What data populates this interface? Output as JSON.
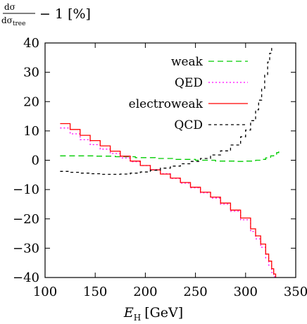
{
  "chart_data": {
    "type": "line",
    "ylabel_fraction": {
      "numerator": "dσ",
      "denominator_main": "dσ",
      "denominator_sub": "tree"
    },
    "ylabel_tail": "− 1 [%]",
    "xlabel_main": "E",
    "xlabel_sub": "H",
    "xlabel_unit": "[GeV]",
    "xlim": [
      100,
      350
    ],
    "ylim": [
      -40,
      40
    ],
    "xticks": [
      "100",
      "150",
      "200",
      "250",
      "300",
      "350"
    ],
    "yticks": [
      "40",
      "30",
      "20",
      "10",
      "0",
      "−10",
      "−20",
      "−30",
      "−40"
    ],
    "legend_position": "top-right",
    "series": [
      {
        "name": "weak",
        "color": "#00cc00",
        "dash": "8,5",
        "x": [
          115,
          130,
          150,
          170,
          190,
          210,
          230,
          250,
          270,
          290,
          300,
          310,
          315,
          320,
          325,
          328,
          331,
          333
        ],
        "y": [
          1.5,
          1.5,
          1.4,
          1.2,
          0.9,
          0.6,
          0.3,
          0.0,
          -0.3,
          -0.4,
          -0.3,
          0.0,
          0.3,
          0.8,
          1.5,
          2.1,
          2.6,
          3.0
        ]
      },
      {
        "name": "QED",
        "color": "#ff00ff",
        "dash": "2,3",
        "x": [
          115,
          125,
          135,
          145,
          155,
          165,
          175,
          185,
          195,
          205,
          215,
          225,
          235,
          245,
          255,
          265,
          275,
          285,
          295,
          305,
          310,
          315,
          320,
          323,
          326,
          328,
          329
        ],
        "y": [
          11,
          9,
          7,
          5.3,
          3.8,
          2.3,
          0.8,
          -0.5,
          -1.8,
          -3.2,
          -4.6,
          -6.2,
          -7.8,
          -9.4,
          -11.1,
          -12.9,
          -15,
          -17.4,
          -20.3,
          -24.3,
          -26.8,
          -29.7,
          -33.3,
          -35.8,
          -38.3,
          -39.5,
          -40
        ]
      },
      {
        "name": "electroweak",
        "color": "#ff0000",
        "dash": "",
        "x": [
          115,
          125,
          135,
          145,
          155,
          165,
          175,
          185,
          195,
          205,
          215,
          225,
          235,
          245,
          255,
          265,
          275,
          285,
          295,
          305,
          310,
          315,
          320,
          323,
          326,
          328,
          330
        ],
        "y": [
          12.5,
          10.5,
          8.5,
          6.7,
          4.9,
          3.1,
          1.4,
          -0.3,
          -1.8,
          -3.3,
          -4.7,
          -6.1,
          -7.6,
          -9.2,
          -10.9,
          -12.6,
          -14.6,
          -17,
          -19.7,
          -23.4,
          -25.8,
          -28.6,
          -32,
          -34.4,
          -37,
          -38.8,
          -40
        ]
      },
      {
        "name": "QCD",
        "color": "#000000",
        "dash": "4,4",
        "x": [
          115,
          125,
          135,
          145,
          155,
          165,
          175,
          185,
          195,
          205,
          215,
          225,
          235,
          245,
          255,
          265,
          275,
          285,
          295,
          300,
          305,
          310,
          313,
          316,
          319,
          322,
          324,
          326
        ],
        "y": [
          -3.8,
          -4.1,
          -4.4,
          -4.6,
          -4.8,
          -4.8,
          -4.7,
          -4.4,
          -4.0,
          -3.4,
          -2.7,
          -2.0,
          -1.2,
          -0.4,
          0.6,
          1.8,
          3.2,
          5.2,
          8.0,
          10.3,
          13.5,
          17.2,
          20.5,
          24.5,
          29,
          33.5,
          36.5,
          38.5
        ]
      }
    ]
  }
}
